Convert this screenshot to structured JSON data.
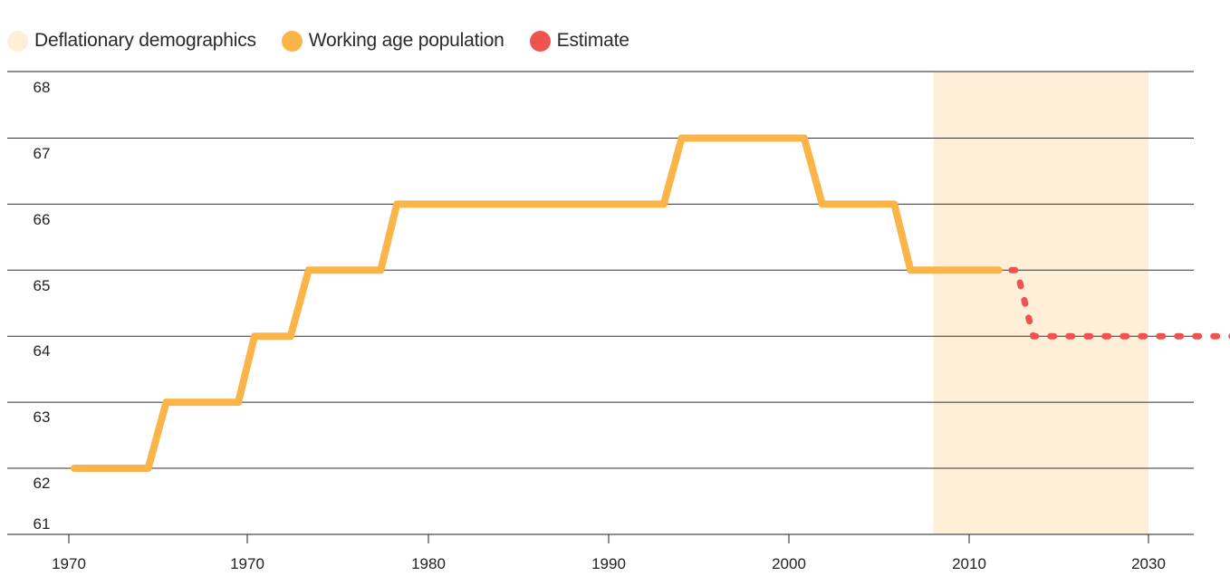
{
  "chart_data": {
    "type": "line",
    "legend_position": "top-left",
    "legend": [
      {
        "name": "Deflationary demographics",
        "color": "#ffeed8"
      },
      {
        "name": "Working age population",
        "color": "#fbb447"
      },
      {
        "name": "Estimate",
        "color": "#ef5350"
      }
    ],
    "x_tick_labels": [
      "1970",
      "1970",
      "1980",
      "1990",
      "2000",
      "2010",
      "2030"
    ],
    "y_tick_labels": [
      "68",
      "67",
      "66",
      "65",
      "64",
      "63",
      "62",
      "61"
    ],
    "y_gridlines": [
      62,
      63,
      64,
      65,
      66,
      67,
      68
    ],
    "ylim": [
      61,
      68
    ],
    "grid": true,
    "shaded_region": {
      "label": "Deflationary demographics",
      "x_range": [
        2008,
        2030
      ],
      "color": "#ffeed8"
    },
    "series": [
      {
        "name": "Working age population",
        "color": "#fbb447",
        "style": "solid",
        "points": [
          [
            1960.3,
            62
          ],
          [
            1964.4,
            62
          ],
          [
            1965.4,
            63
          ],
          [
            1969.4,
            63
          ],
          [
            1970.3,
            64
          ],
          [
            1972.3,
            64
          ],
          [
            1973.3,
            65
          ],
          [
            1977.3,
            65
          ],
          [
            1978.2,
            66
          ],
          [
            1993.0,
            66
          ],
          [
            1994.0,
            67
          ],
          [
            2000.8,
            67
          ],
          [
            2001.8,
            66
          ],
          [
            2005.8,
            66
          ],
          [
            2006.7,
            65
          ],
          [
            2011.6,
            65
          ]
        ]
      },
      {
        "name": "Estimate",
        "color": "#ef5350",
        "style": "dotted",
        "points": [
          [
            2012.3,
            65
          ],
          [
            2012.6,
            65
          ],
          [
            2013.5,
            64
          ],
          [
            2029.0,
            64
          ]
        ]
      }
    ]
  }
}
